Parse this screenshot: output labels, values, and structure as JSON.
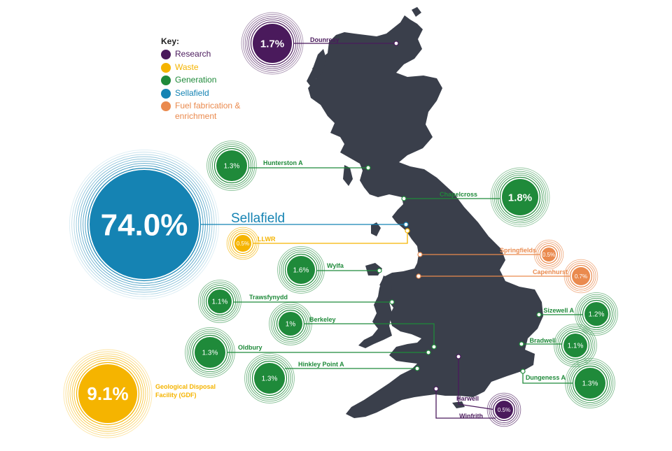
{
  "key": {
    "title": "Key:",
    "items": [
      {
        "label": "Research",
        "color": "#4a1a5c"
      },
      {
        "label": "Waste",
        "color": "#f5b400"
      },
      {
        "label": "Generation",
        "color": "#1f8a3a"
      },
      {
        "label": "Sellafield",
        "color": "#1583b3"
      },
      {
        "label": "Fuel fabrication & enrichment",
        "color": "#ea8a4e"
      }
    ]
  },
  "map_color": "#3a3f4b",
  "sites": [
    {
      "name": "Dounreay",
      "value": "1.7%",
      "category": "Research"
    },
    {
      "name": "Hunterston A",
      "value": "1.3%",
      "category": "Generation"
    },
    {
      "name": "Chapelcross",
      "value": "1.8%",
      "category": "Generation"
    },
    {
      "name": "Sellafield",
      "value": "74.0%",
      "category": "Sellafield"
    },
    {
      "name": "LLWR",
      "value": "0.5%",
      "category": "Waste"
    },
    {
      "name": "Springfields",
      "value": "0.5%",
      "category": "Fuel fabrication & enrichment"
    },
    {
      "name": "Wylfa",
      "value": "1.6%",
      "category": "Generation"
    },
    {
      "name": "Capenhurst",
      "value": "0.7%",
      "category": "Fuel fabrication & enrichment"
    },
    {
      "name": "Trawsfynydd",
      "value": "1.1%",
      "category": "Generation"
    },
    {
      "name": "Sizewell A",
      "value": "1.2%",
      "category": "Generation"
    },
    {
      "name": "Berkeley",
      "value": "1%",
      "category": "Generation"
    },
    {
      "name": "Oldbury",
      "value": "1.3%",
      "category": "Generation"
    },
    {
      "name": "Bradwell",
      "value": "1.1%",
      "category": "Generation"
    },
    {
      "name": "Hinkley Point A",
      "value": "1.3%",
      "category": "Generation"
    },
    {
      "name": "Dungeness A",
      "value": "1.3%",
      "category": "Generation"
    },
    {
      "name": "Harwell",
      "value": "0.5%",
      "category": "Research"
    },
    {
      "name": "Winfrith",
      "value": "",
      "category": "Research"
    },
    {
      "name": "Geological Disposal Facility (GDF)",
      "value": "9.1%",
      "category": "Waste"
    }
  ]
}
